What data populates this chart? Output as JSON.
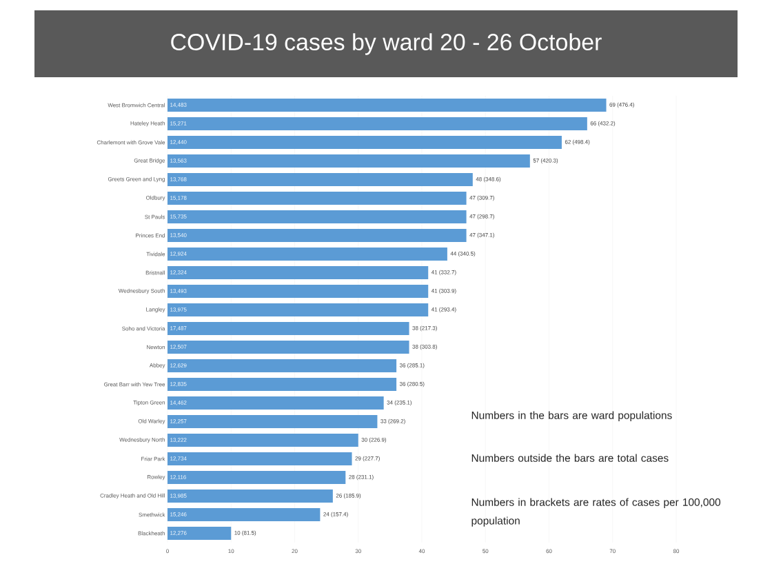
{
  "chart_data": {
    "type": "bar",
    "orientation": "horizontal",
    "title": "COVID-19 cases by ward 20 - 26 October",
    "categories": [
      "West Bromwich Central",
      "Hateley Heath",
      "Charlemont with Grove Vale",
      "Great Bridge",
      "Greets Green and Lyng",
      "Oldbury",
      "St Pauls",
      "Princes End",
      "Tividale",
      "Bristnall",
      "Wednesbury South",
      "Langley",
      "Soho and Victoria",
      "Newton",
      "Abbey",
      "Great Barr with Yew Tree",
      "Tipton Green",
      "Old Warley",
      "Wednesbury North",
      "Friar Park",
      "Rowley",
      "Cradley Heath and Old Hill",
      "Smethwick",
      "Blackheath"
    ],
    "values": [
      69,
      66,
      62,
      57,
      48,
      47,
      47,
      47,
      44,
      41,
      41,
      41,
      38,
      38,
      36,
      36,
      34,
      33,
      30,
      29,
      28,
      26,
      24,
      10
    ],
    "value_labels": [
      "69  (476.4)",
      "66  (432.2)",
      "62  (498.4)",
      "57  (420.3)",
      "48  (348.6)",
      "47  (309.7)",
      "47  (298.7)",
      "47  (347.1)",
      "44  (340.5)",
      "41  (332.7)",
      "41  (303.9)",
      "41  (293.4)",
      "38  (217.3)",
      "38  (303.8)",
      "36  (285.1)",
      "36  (280.5)",
      "34  (235.1)",
      "33  (269.2)",
      "30  (226.9)",
      "29  (227.7)",
      "28  (231.1)",
      "26  (185.9)",
      "24  (157.4)",
      "10  (81.5)"
    ],
    "color": "#5b9bd5",
    "xlim": [
      0,
      80
    ],
    "xticks": [
      0,
      10,
      20,
      30,
      40,
      50,
      60,
      70,
      80
    ],
    "grid": "x",
    "annotations": [
      "Numbers in the bars are ward populations",
      "Numbers outside the bars are total cases",
      "Numbers in brackets are rates of cases per 100,000 population",
      {
        "text": "14,483",
        "y": "West Bromwich Central"
      },
      {
        "text": "15,271",
        "y": "Hateley Heath"
      },
      {
        "text": "12,440",
        "y": "Charlemont with Grove Vale"
      },
      {
        "text": "13,563",
        "y": "Great Bridge"
      },
      {
        "text": "13,768",
        "y": "Greets Green and Lyng"
      },
      {
        "text": "15,178",
        "y": "Oldbury"
      },
      {
        "text": "15,735",
        "y": "St Pauls"
      },
      {
        "text": "13,540",
        "y": "Princes End"
      },
      {
        "text": "12,924",
        "y": "Tividale"
      },
      {
        "text": "12,324",
        "y": "Bristnall"
      },
      {
        "text": "13,493",
        "y": "Wednesbury South"
      },
      {
        "text": "13,975",
        "y": "Langley"
      },
      {
        "text": "17,487",
        "y": "Soho and Victoria"
      },
      {
        "text": "12,507",
        "y": "Newton"
      },
      {
        "text": "12,629",
        "y": "Abbey"
      },
      {
        "text": "12,835",
        "y": "Great Barr with Yew Tree"
      },
      {
        "text": "14,462",
        "y": "Tipton Green"
      },
      {
        "text": "12,257",
        "y": "Old Warley"
      },
      {
        "text": "13,222",
        "y": "Wednesbury North"
      },
      {
        "text": "12,734",
        "y": "Friar Park"
      },
      {
        "text": "12,116",
        "y": "Rowley"
      },
      {
        "text": "13,985",
        "y": "Cradley Heath and Old Hill"
      },
      {
        "text": "15,246",
        "y": "Smethwick"
      },
      {
        "text": "12,276",
        "y": "Blackheath"
      }
    ]
  }
}
